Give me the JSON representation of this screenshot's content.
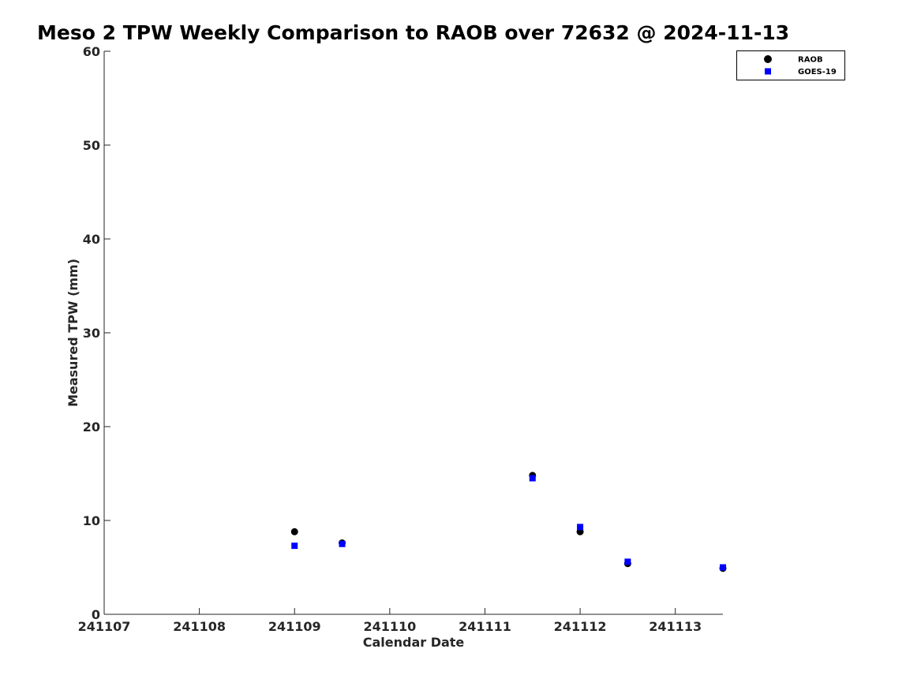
{
  "chart_data": {
    "type": "scatter",
    "title": "Meso 2 TPW Weekly Comparison to RAOB over 72632 @ 2024-11-13",
    "xlabel": "Calendar Date",
    "ylabel": "Measured TPW (mm)",
    "x_tick_labels": [
      "241107",
      "241108",
      "241109",
      "241110",
      "241111",
      "241112",
      "241113"
    ],
    "x_ticks": [
      0,
      1,
      2,
      3,
      4,
      5,
      6
    ],
    "xlim": [
      0,
      6.5
    ],
    "ylim": [
      0,
      60
    ],
    "y_ticks": [
      0,
      10,
      20,
      30,
      40,
      50,
      60
    ],
    "y_tick_labels": [
      "0",
      "10",
      "20",
      "30",
      "40",
      "50",
      "60"
    ],
    "grid": false,
    "legend_position": "top-right",
    "series": [
      {
        "name": "RAOB",
        "marker": "circle",
        "color": "#000000",
        "x": [
          2.0,
          2.5,
          4.5,
          5.0,
          5.5,
          6.5
        ],
        "y": [
          8.8,
          7.6,
          14.8,
          8.8,
          5.4,
          4.9
        ]
      },
      {
        "name": "GOES-19",
        "marker": "square",
        "color": "#0000ff",
        "x": [
          2.0,
          2.5,
          4.5,
          5.0,
          5.5,
          6.5
        ],
        "y": [
          7.3,
          7.5,
          14.5,
          9.3,
          5.6,
          5.0
        ]
      }
    ]
  }
}
